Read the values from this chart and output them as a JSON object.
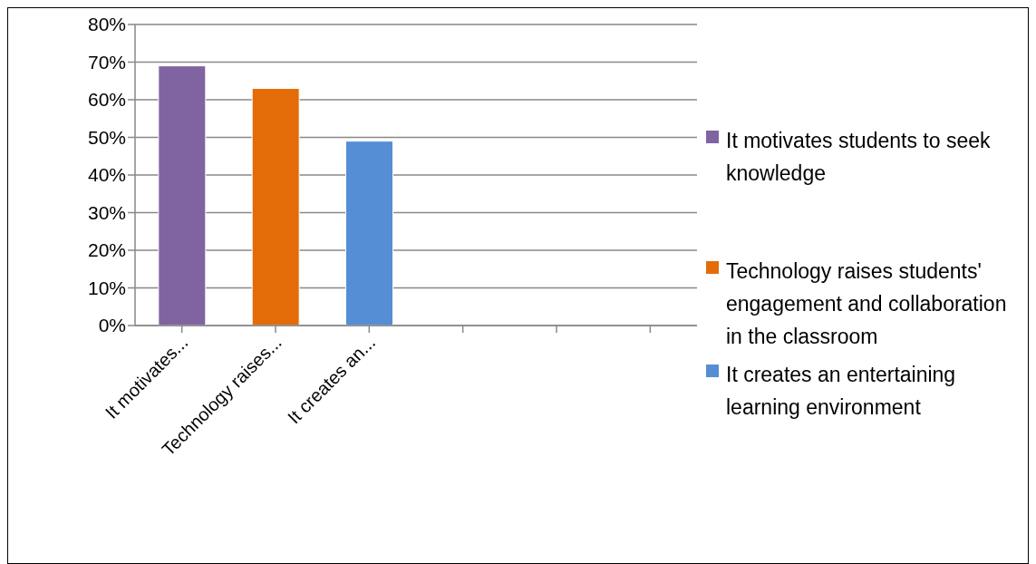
{
  "chart_data": {
    "type": "bar",
    "stacked": true,
    "categories": [
      "It motivates...",
      "Technology raises...",
      "It creates an...",
      null,
      null,
      null
    ],
    "series": [
      {
        "name": "It motivates students to seek knowledge",
        "color": "#8064a2",
        "values": [
          69,
          null,
          null,
          null,
          null,
          null
        ]
      },
      {
        "name": "Technology raises students' engagement and collaboration in the classroom",
        "color": "#e36c09",
        "values": [
          null,
          63,
          null,
          null,
          null,
          null
        ]
      },
      {
        "name": "It creates an entertaining learning environment",
        "color": "#558ed5",
        "values": [
          null,
          null,
          49,
          null,
          null,
          null
        ]
      }
    ],
    "ylim": [
      0,
      80
    ],
    "yticks": [
      {
        "value": 0,
        "label": "0%"
      },
      {
        "value": 10,
        "label": "10%"
      },
      {
        "value": 20,
        "label": "20%"
      },
      {
        "value": 30,
        "label": "30%"
      },
      {
        "value": 40,
        "label": "40%"
      },
      {
        "value": 50,
        "label": "50%"
      },
      {
        "value": 60,
        "label": "60%"
      },
      {
        "value": 70,
        "label": "70%"
      },
      {
        "value": 80,
        "label": "80%"
      }
    ],
    "grid": "y",
    "legend": "right"
  }
}
